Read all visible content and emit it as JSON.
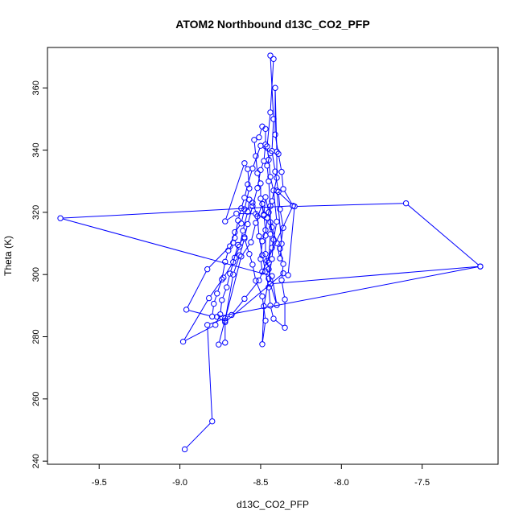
{
  "chart_data": {
    "type": "line",
    "title": "ATOM2 Northbound d13C_CO2_PFP",
    "xlabel": "d13C_CO2_PFP",
    "ylabel": "Theta (K)",
    "xlim": [
      -9.82,
      -7.03
    ],
    "ylim": [
      239,
      373
    ],
    "xticks": [
      -9.5,
      -9.0,
      -8.5,
      -8.0,
      -7.5
    ],
    "xtick_labels": [
      "-9.5",
      "-9.0",
      "-8.5",
      "-8.0",
      "-7.5"
    ],
    "yticks": [
      240,
      260,
      280,
      300,
      320,
      340,
      360
    ],
    "ytick_labels": [
      "240",
      "260",
      "280",
      "300",
      "320",
      "340",
      "360"
    ],
    "grid": false,
    "series": [
      {
        "color": "#0000ff",
        "marker": "open-circle",
        "points": [
          [
            -8.97,
            243.8
          ],
          [
            -8.8,
            252.8
          ],
          [
            -8.83,
            283.8
          ],
          [
            -8.72,
            285.9
          ],
          [
            -8.68,
            287.0
          ],
          [
            -8.6,
            292.2
          ],
          [
            -8.51,
            298.1
          ],
          [
            -8.46,
            304.4
          ],
          [
            -8.43,
            308.6
          ],
          [
            -8.4,
            317.0
          ],
          [
            -8.42,
            327.0
          ],
          [
            -8.44,
            331.4
          ],
          [
            -8.45,
            336.9
          ],
          [
            -8.46,
            341.2
          ],
          [
            -8.44,
            352.1
          ],
          [
            -8.42,
            369.3
          ],
          [
            -8.44,
            370.4
          ],
          [
            -8.42,
            350.0
          ],
          [
            -8.43,
            339.7
          ],
          [
            -8.41,
            333.1
          ],
          [
            -8.39,
            326.6
          ],
          [
            -8.38,
            321.0
          ],
          [
            -8.36,
            315.0
          ],
          [
            -8.38,
            308.3
          ],
          [
            -8.36,
            303.4
          ],
          [
            -8.37,
            298.2
          ],
          [
            -8.35,
            292.0
          ],
          [
            -8.35,
            282.9
          ],
          [
            -8.42,
            285.8
          ],
          [
            -8.44,
            290.0
          ],
          [
            -8.45,
            295.9
          ],
          [
            -8.47,
            301.0
          ],
          [
            -8.49,
            306.2
          ],
          [
            -8.51,
            312.3
          ],
          [
            -8.52,
            318.7
          ],
          [
            -8.55,
            323.1
          ],
          [
            -8.57,
            324.1
          ],
          [
            -8.58,
            320.2
          ],
          [
            -8.61,
            314.1
          ],
          [
            -8.63,
            309.0
          ],
          [
            -8.66,
            305.4
          ],
          [
            -8.69,
            300.3
          ],
          [
            -8.71,
            295.9
          ],
          [
            -8.74,
            291.8
          ],
          [
            -8.75,
            287.2
          ],
          [
            -8.78,
            283.8
          ],
          [
            -8.98,
            278.4
          ],
          [
            -8.82,
            292.4
          ],
          [
            -8.73,
            299.0
          ],
          [
            -8.67,
            304.0
          ],
          [
            -8.64,
            309.5
          ],
          [
            -8.6,
            312.0
          ],
          [
            -8.58,
            316.2
          ],
          [
            -8.55,
            322.0
          ],
          [
            -8.52,
            327.8
          ],
          [
            -8.5,
            333.6
          ],
          [
            -8.48,
            336.5
          ],
          [
            -8.47,
            341.8
          ],
          [
            -8.47,
            346.8
          ],
          [
            -8.49,
            347.6
          ],
          [
            -8.51,
            344.1
          ],
          [
            -8.54,
            343.3
          ],
          [
            -8.53,
            338.1
          ],
          [
            -8.52,
            332.6
          ],
          [
            -8.5,
            329.3
          ],
          [
            -8.5,
            324.4
          ],
          [
            -8.48,
            319.0
          ],
          [
            -8.47,
            314.3
          ],
          [
            -8.49,
            310.7
          ],
          [
            -8.5,
            305.0
          ],
          [
            -8.49,
            300.9
          ],
          [
            -8.3,
            322.1
          ],
          [
            -8.36,
            327.5
          ],
          [
            -8.37,
            333.0
          ],
          [
            -8.39,
            338.8
          ],
          [
            -8.41,
            345.0
          ],
          [
            -8.41,
            360.0
          ],
          [
            -8.4,
            339.5
          ],
          [
            -8.4,
            331.1
          ],
          [
            -8.43,
            323.6
          ],
          [
            -8.46,
            318.2
          ],
          [
            -8.47,
            312.5
          ],
          [
            -8.47,
            306.6
          ],
          [
            -8.45,
            301.7
          ],
          [
            -8.44,
            297.0
          ],
          [
            -8.45,
            303.8
          ],
          [
            -8.44,
            313.0
          ],
          [
            -8.44,
            322.0
          ],
          [
            -8.45,
            330.0
          ],
          [
            -8.46,
            335.0
          ],
          [
            -8.44,
            339.0
          ],
          [
            -8.5,
            341.4
          ],
          [
            -8.55,
            334.1
          ],
          [
            -8.58,
            329.0
          ],
          [
            -8.6,
            324.7
          ],
          [
            -8.62,
            321.3
          ],
          [
            -8.64,
            317.4
          ],
          [
            -8.66,
            311.8
          ],
          [
            -8.67,
            310.2
          ],
          [
            -8.7,
            307.7
          ],
          [
            -8.72,
            304.1
          ],
          [
            -8.74,
            298.4
          ],
          [
            -8.77,
            293.9
          ],
          [
            -8.79,
            290.6
          ],
          [
            -8.8,
            286.5
          ],
          [
            -8.96,
            288.7
          ],
          [
            -8.83,
            301.7
          ],
          [
            -8.69,
            309.1
          ],
          [
            -8.66,
            313.6
          ],
          [
            -8.62,
            316.4
          ],
          [
            -8.6,
            321.0
          ],
          [
            -8.57,
            327.7
          ],
          [
            -8.58,
            333.9
          ],
          [
            -8.6,
            335.8
          ],
          [
            -8.72,
            317.1
          ],
          [
            -8.65,
            319.6
          ],
          [
            -8.53,
            319.5
          ],
          [
            -8.44,
            316.8
          ],
          [
            -8.42,
            311.2
          ],
          [
            -8.43,
            305.0
          ],
          [
            -8.45,
            298.7
          ],
          [
            -8.48,
            289.8
          ],
          [
            -8.49,
            277.6
          ],
          [
            -8.47,
            285.2
          ],
          [
            -8.49,
            293.0
          ],
          [
            -8.53,
            298.0
          ],
          [
            -8.55,
            303.2
          ],
          [
            -8.57,
            306.6
          ],
          [
            -8.6,
            311.6
          ],
          [
            -8.63,
            306.2
          ],
          [
            -8.67,
            300.0
          ],
          [
            -8.72,
            285.2
          ],
          [
            -8.72,
            278.1
          ],
          [
            -8.76,
            277.5
          ],
          [
            -8.62,
            305.8
          ],
          [
            -8.56,
            310.4
          ],
          [
            -8.53,
            316.6
          ],
          [
            -8.49,
            322.7
          ],
          [
            -8.48,
            319.3
          ],
          [
            -8.47,
            324.9
          ],
          [
            -8.45,
            320.0
          ],
          [
            -8.43,
            315.2
          ],
          [
            -8.4,
            310.1
          ],
          [
            -8.38,
            305.2
          ],
          [
            -8.37,
            309.9
          ],
          [
            -8.4,
            327.0
          ],
          [
            -8.3,
            322.1
          ],
          [
            -9.74,
            318.1
          ],
          [
            -8.43,
            299.5
          ],
          [
            -8.4,
            290.2
          ],
          [
            -8.44,
            297.0
          ],
          [
            -7.14,
            302.6
          ],
          [
            -8.77,
            286.4
          ],
          [
            -8.72,
            284.7
          ],
          [
            -8.36,
            300.4
          ],
          [
            -8.33,
            299.8
          ],
          [
            -8.29,
            321.9
          ],
          [
            -7.6,
            322.9
          ],
          [
            -7.14,
            302.6
          ]
        ]
      }
    ]
  }
}
